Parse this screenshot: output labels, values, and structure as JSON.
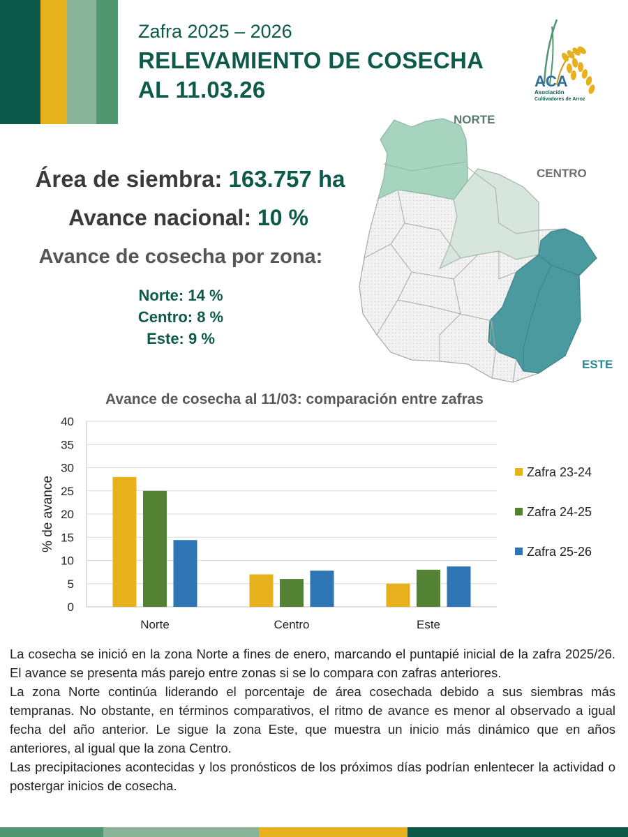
{
  "header": {
    "subtitle": "Zafra 2025 – 2026",
    "title_line1": "RELEVAMIENTO DE COSECHA",
    "title_line2": "AL 11.03.26"
  },
  "logo": {
    "name": "ACA",
    "line1": "Asociación",
    "line2": "Cultivadores de Arroz"
  },
  "summary": {
    "area_label": "Área de siembra:",
    "area_value": "163.757 ha",
    "avance_label": "Avance nacional:",
    "avance_value": "10 %",
    "zona_title": "Avance de cosecha por zona:",
    "zonas": [
      "Norte: 14 %",
      "Centro: 8 %",
      "Este: 9 %"
    ]
  },
  "map": {
    "labels": {
      "norte": "NORTE",
      "centro": "CENTRO",
      "este": "ESTE"
    },
    "colors": {
      "norte": "#a7d4be",
      "centro": "#d6e6dc",
      "este": "#4a9aa0",
      "rest": "#f0f0f0",
      "label_norte": "#5a7a6e",
      "label_centro": "#6e6e6e",
      "label_este": "#2d8a94"
    }
  },
  "chart_data": {
    "type": "bar",
    "title": "Avance de cosecha al 11/03: comparación entre zafras",
    "categories": [
      "Norte",
      "Centro",
      "Este"
    ],
    "series": [
      {
        "name": "Zafra 23-24",
        "color": "#e6b11c",
        "values": [
          28,
          7,
          5
        ]
      },
      {
        "name": "Zafra 24-25",
        "color": "#548235",
        "values": [
          25,
          6,
          8
        ]
      },
      {
        "name": "Zafra 25-26",
        "color": "#2e75b6",
        "values": [
          14.4,
          7.8,
          8.7
        ]
      }
    ],
    "ylabel": "% de avance",
    "xlabel": "",
    "ylim": [
      0,
      40
    ],
    "yticks": [
      0,
      5,
      10,
      15,
      20,
      25,
      30,
      35,
      40
    ],
    "grid": true,
    "legend": "right"
  },
  "body": {
    "p1": "La cosecha se inició en la zona Norte a fines de enero, marcando el puntapié inicial de la zafra 2025/26. El avance se presenta más parejo entre zonas si se lo compara con zafras anteriores.",
    "p2": "La zona Norte continúa liderando el porcentaje de área cosechada debido a sus siembras más tempranas. No obstante, en términos comparativos, el ritmo de avance es menor al observado a igual fecha del año anterior. Le sigue la zona Este, que muestra un inicio más dinámico que en años anteriores, al igual que la zona Centro.",
    "p3": "Las precipitaciones acontecidas y los pronósticos de los próximos días podrían enlentecer la actividad o postergar inicios de cosecha."
  }
}
